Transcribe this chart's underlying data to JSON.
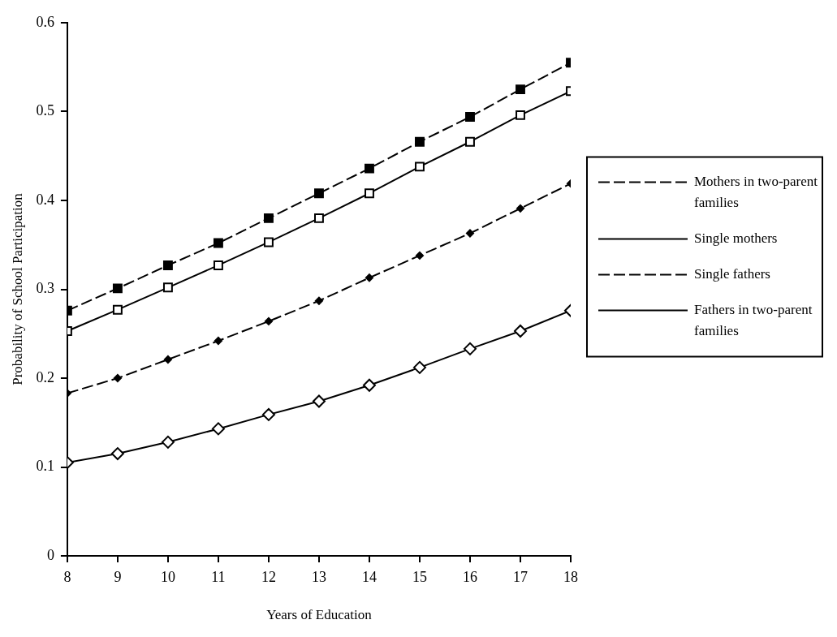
{
  "chart_data": {
    "type": "line",
    "xlabel": "Years of Education",
    "ylabel": "Probability of School Participation",
    "x": [
      8,
      9,
      10,
      11,
      12,
      13,
      14,
      15,
      16,
      17,
      18
    ],
    "xlim": [
      8,
      18
    ],
    "xticks": [
      8,
      9,
      10,
      11,
      12,
      13,
      14,
      15,
      16,
      17,
      18
    ],
    "ylim": [
      0,
      0.6
    ],
    "yticks": [
      0,
      0.1,
      0.2,
      0.3,
      0.4,
      0.5,
      0.6
    ],
    "grid": false,
    "legend": "right",
    "series": [
      {
        "name": "Mothers in two-parent families",
        "color": "#000000",
        "marker": "square",
        "line_style": "dashed",
        "values": [
          0.276,
          0.301,
          0.327,
          0.352,
          0.38,
          0.408,
          0.436,
          0.466,
          0.494,
          0.525,
          0.555
        ]
      },
      {
        "name": "Single mothers",
        "color": "#000000",
        "marker": "square",
        "line_style": "solid",
        "values": [
          0.253,
          0.277,
          0.302,
          0.327,
          0.353,
          0.38,
          0.408,
          0.438,
          0.466,
          0.496,
          0.523
        ]
      },
      {
        "name": "Single fathers",
        "color": "#000000",
        "marker": "diamond",
        "line_style": "dashed",
        "values": [
          0.183,
          0.2,
          0.221,
          0.242,
          0.264,
          0.287,
          0.313,
          0.338,
          0.363,
          0.391,
          0.419
        ]
      },
      {
        "name": "Fathers in two-parent families",
        "color": "#000000",
        "marker": "diamond",
        "line_style": "solid",
        "values": [
          0.105,
          0.115,
          0.128,
          0.143,
          0.159,
          0.174,
          0.192,
          0.212,
          0.233,
          0.253,
          0.276
        ]
      }
    ]
  }
}
